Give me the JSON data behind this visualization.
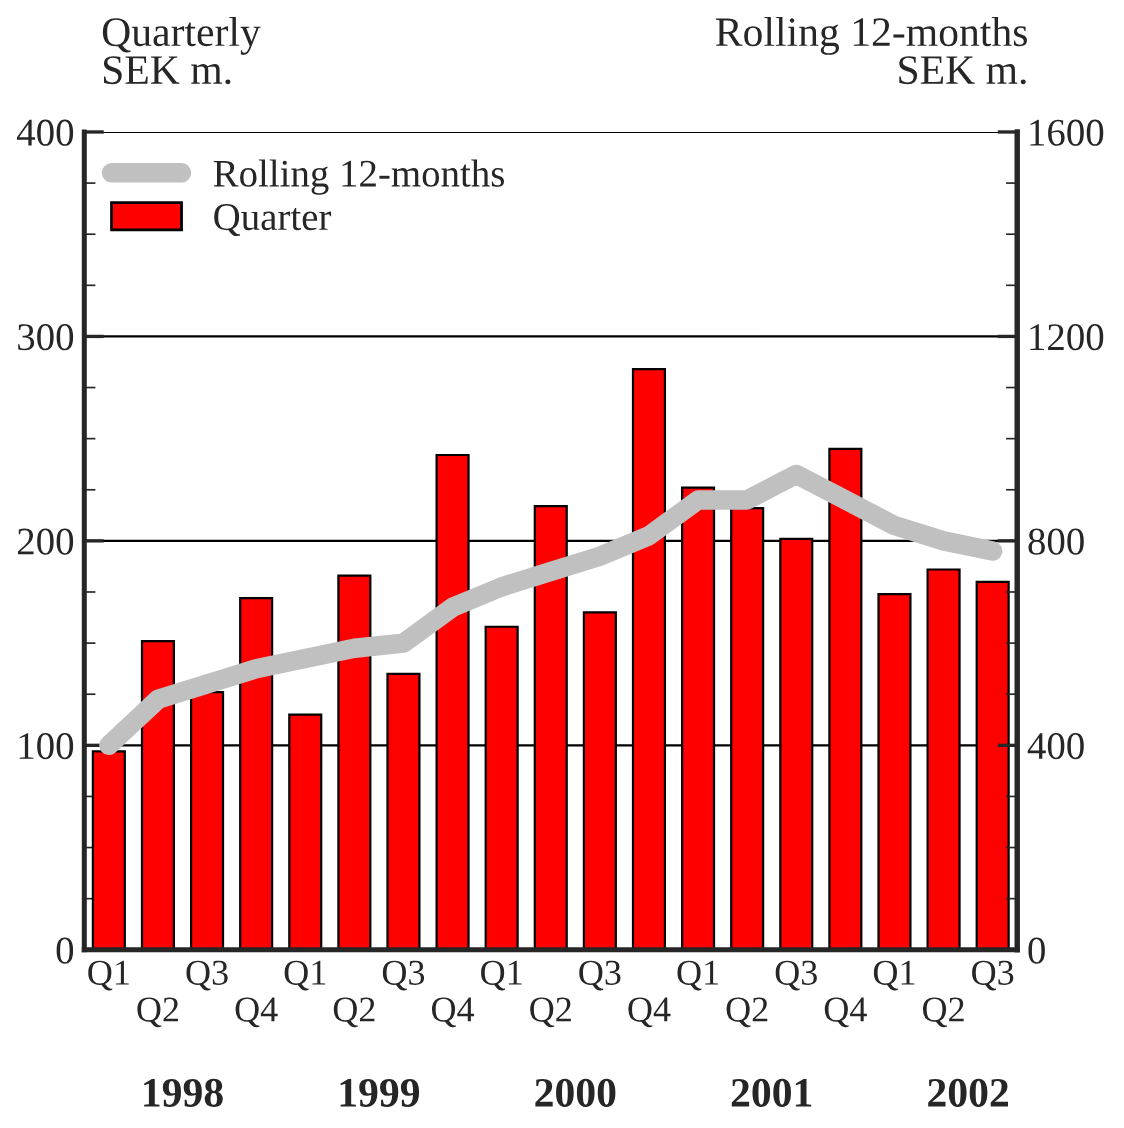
{
  "chart_data": {
    "type": "bar",
    "ylabel": "Quarterly\nSEK m.",
    "y2label": "Rolling 12-months\nSEK m.",
    "categories": [
      "Q1",
      "Q2",
      "Q3",
      "Q4",
      "Q1",
      "Q2",
      "Q3",
      "Q4",
      "Q1",
      "Q2",
      "Q3",
      "Q4",
      "Q1",
      "Q2",
      "Q3",
      "Q4",
      "Q1",
      "Q2",
      "Q3"
    ],
    "series": [
      {
        "name": "Rolling 12-months",
        "type": "line",
        "axis": "y2",
        "color": "#c0c0c0",
        "values": [
          400,
          490,
          520,
          550,
          570,
          590,
          600,
          670,
          710,
          740,
          770,
          810,
          880,
          880,
          930,
          880,
          830,
          800,
          780
        ]
      },
      {
        "name": "Quarter",
        "color": "#ff0000",
        "values": [
          97,
          151,
          126,
          172,
          115,
          183,
          135,
          242,
          158,
          217,
          165,
          284,
          226,
          216,
          201,
          245,
          174,
          186,
          180
        ]
      }
    ],
    "ylim": [
      0,
      400
    ],
    "yticks": [
      0,
      100,
      200,
      300,
      400
    ],
    "y2lim": [
      0,
      1600
    ],
    "y2ticks": [
      0,
      400,
      800,
      1200,
      1600
    ],
    "annotations": [
      "1998",
      "1999",
      "2000",
      "2001",
      "2002"
    ],
    "grid": "y",
    "legend": "top left"
  }
}
